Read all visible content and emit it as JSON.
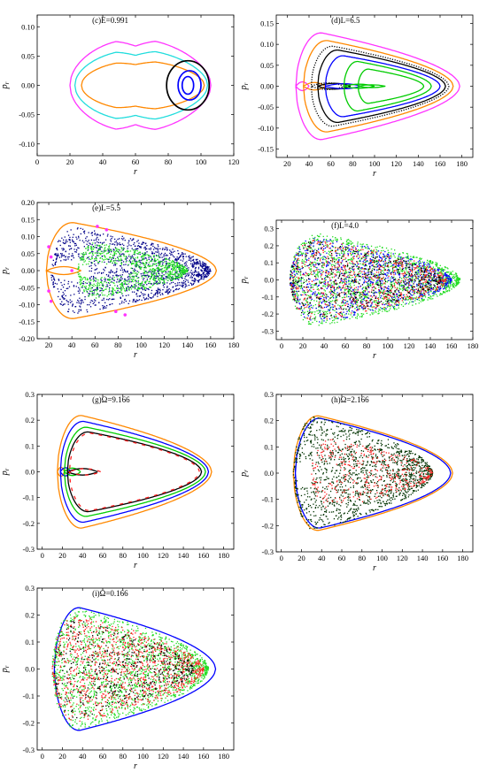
{
  "chart_data": [
    {
      "type": "line",
      "title": "(c)E=0.991",
      "xlabel": "r",
      "ylabel": "p_r",
      "xlim": [
        0,
        120
      ],
      "ylim": [
        -0.12,
        0.12
      ],
      "xticks": [
        "0",
        "20",
        "40",
        "60",
        "80",
        "100",
        "120"
      ],
      "yticks": [
        "-0.10",
        "-0.05",
        "0.00",
        "0.05",
        "0.10"
      ],
      "series": [
        {
          "kind": "lobe",
          "color": "#ff33ff",
          "rmin": 20,
          "rmax": 106,
          "amp": 0.085,
          "notch": 0.07,
          "neck": 60,
          "horn": true
        },
        {
          "kind": "lobe",
          "color": "#22dddd",
          "rmin": 23,
          "rmax": 104,
          "amp": 0.065,
          "notch": 0.045,
          "neck": 60
        },
        {
          "kind": "lobe",
          "color": "#ff8800",
          "rmin": 27,
          "rmax": 102,
          "amp": 0.045,
          "notch": 0.025,
          "neck": 60
        },
        {
          "kind": "island",
          "color": "#000000",
          "center": 92,
          "rx": 13,
          "ry": 0.042
        },
        {
          "kind": "island",
          "color": "#0000ff",
          "center": 93,
          "rx": 7,
          "ry": 0.025
        },
        {
          "kind": "island",
          "color": "#0000ff",
          "center": 92,
          "rx": 3.5,
          "ry": 0.015
        }
      ]
    },
    {
      "type": "line",
      "title": "(d)L=6.5",
      "xlabel": "r",
      "ylabel": "p_r",
      "xlim": [
        10,
        190
      ],
      "ylim": [
        -0.17,
        0.17
      ],
      "xticks": [
        "20",
        "40",
        "60",
        "80",
        "100",
        "120",
        "140",
        "160",
        "180"
      ],
      "yticks": [
        "-0.15",
        "-0.10",
        "-0.05",
        "0.00",
        "0.05",
        "0.10",
        "0.15"
      ],
      "series": [
        {
          "kind": "chevron",
          "color": "#ff33ff",
          "rmin": 28,
          "rmax": 178,
          "amp": 0.14,
          "notch": 40
        },
        {
          "kind": "chevron",
          "color": "#ff8800",
          "rmin": 35,
          "rmax": 172,
          "amp": 0.12,
          "notch": 55
        },
        {
          "kind": "chevron",
          "color": "#000000",
          "rmin": 42,
          "rmax": 168,
          "amp": 0.105,
          "notch": 72,
          "dotted": true
        },
        {
          "kind": "chevron",
          "color": "#000000",
          "rmin": 48,
          "rmax": 165,
          "amp": 0.095,
          "notch": 78
        },
        {
          "kind": "chevron",
          "color": "#0000ff",
          "rmin": 55,
          "rmax": 160,
          "amp": 0.08,
          "notch": 88
        },
        {
          "kind": "chevron",
          "color": "#00cc00",
          "rmin": 72,
          "rmax": 152,
          "amp": 0.065,
          "notch": 100
        },
        {
          "kind": "chevron",
          "color": "#00cc00",
          "rmin": 85,
          "rmax": 145,
          "amp": 0.045,
          "notch": 110
        }
      ]
    },
    {
      "type": "scatter",
      "title": "(e)L=5.5",
      "xlabel": "r",
      "ylabel": "p_r",
      "xlim": [
        10,
        180
      ],
      "ylim": [
        -0.2,
        0.2
      ],
      "xticks": [
        "20",
        "40",
        "60",
        "80",
        "100",
        "120",
        "140",
        "160",
        "180"
      ],
      "yticks": [
        "-0.20",
        "-0.15",
        "-0.10",
        "-0.05",
        "0.00",
        "0.05",
        "0.10",
        "0.15",
        "0.20"
      ],
      "series": [
        {
          "kind": "chevron",
          "color": "#ff8800",
          "rmin": 18,
          "rmax": 165,
          "amp": 0.155,
          "notch": 48
        },
        {
          "kind": "chaos",
          "color": "#000088",
          "rmin": 22,
          "rmax": 160,
          "amp": 0.14,
          "notch": 55,
          "n": 1500
        },
        {
          "kind": "chaos",
          "color": "#22dd22",
          "rmin": 45,
          "rmax": 140,
          "amp": 0.09,
          "notch": 90,
          "n": 1000
        },
        {
          "kind": "points",
          "color": "#ff33ff",
          "x": [
            20,
            20,
            22,
            22,
            40,
            62,
            70,
            78,
            86
          ],
          "y": [
            0.07,
            -0.06,
            0.04,
            -0.09,
            0.0,
            0.13,
            0.12,
            -0.12,
            -0.13
          ]
        }
      ]
    },
    {
      "type": "scatter",
      "title": "(f)L=4.0",
      "xlabel": "r",
      "ylabel": "p_r",
      "xlim": [
        -5,
        180
      ],
      "ylim": [
        -0.35,
        0.35
      ],
      "xticks": [
        "0",
        "20",
        "40",
        "60",
        "80",
        "100",
        "120",
        "140",
        "160",
        "180"
      ],
      "yticks": [
        "-0.3",
        "-0.2",
        "-0.1",
        "0.0",
        "0.1",
        "0.2",
        "0.3"
      ],
      "series": [
        {
          "kind": "chaos",
          "color": "#22dd22",
          "rmin": 8,
          "rmax": 168,
          "amp": 0.3,
          "notch": 10,
          "n": 1800
        },
        {
          "kind": "chaos",
          "color": "#0000ff",
          "rmin": 8,
          "rmax": 160,
          "amp": 0.28,
          "notch": 10,
          "n": 900
        },
        {
          "kind": "chaos",
          "color": "#ff2222",
          "rmin": 8,
          "rmax": 155,
          "amp": 0.27,
          "notch": 10,
          "n": 700
        },
        {
          "kind": "chaos",
          "color": "#000000",
          "rmin": 8,
          "rmax": 150,
          "amp": 0.25,
          "notch": 10,
          "n": 500
        }
      ]
    },
    {
      "type": "line",
      "title": "(g)Ω=9.166",
      "xlabel": "r",
      "ylabel": "p_r",
      "xlim": [
        -5,
        190
      ],
      "ylim": [
        -0.3,
        0.3
      ],
      "xticks": [
        "0",
        "20",
        "40",
        "60",
        "80",
        "100",
        "120",
        "140",
        "160",
        "180"
      ],
      "yticks": [
        "-0.3",
        "-0.2",
        "-0.1",
        "0.0",
        "0.1",
        "0.2",
        "0.3"
      ],
      "series": [
        {
          "kind": "chevron",
          "color": "#ff8800",
          "rmin": 15,
          "rmax": 168,
          "amp": 0.24,
          "notch": 22
        },
        {
          "kind": "chevron",
          "color": "#0000ff",
          "rmin": 18,
          "rmax": 165,
          "amp": 0.215,
          "notch": 28
        },
        {
          "kind": "chevron",
          "color": "#00cc00",
          "rmin": 22,
          "rmax": 162,
          "amp": 0.19,
          "notch": 38
        },
        {
          "kind": "chevron",
          "color": "#000000",
          "rmin": 25,
          "rmax": 158,
          "amp": 0.17,
          "notch": 55
        },
        {
          "kind": "chevron",
          "color": "#ff2222",
          "rmin": 27,
          "rmax": 156,
          "amp": 0.165,
          "notch": 58,
          "dashed": true
        }
      ]
    },
    {
      "type": "scatter",
      "title": "(h)Ω=2.166",
      "xlabel": "r",
      "ylabel": "p_r",
      "xlim": [
        -5,
        190
      ],
      "ylim": [
        -0.3,
        0.3
      ],
      "xticks": [
        "0",
        "20",
        "40",
        "60",
        "80",
        "100",
        "120",
        "140",
        "160",
        "180"
      ],
      "yticks": [
        "-0.3",
        "-0.2",
        "-0.1",
        "0.0",
        "0.1",
        "0.2",
        "0.3"
      ],
      "series": [
        {
          "kind": "chevron",
          "color": "#ff8800",
          "rmin": 12,
          "rmax": 170,
          "amp": 0.24,
          "notch": 12
        },
        {
          "kind": "chevron",
          "color": "#0000ff",
          "rmin": 14,
          "rmax": 168,
          "amp": 0.23,
          "notch": 14
        },
        {
          "kind": "chaos",
          "color": "#003300",
          "rmin": 12,
          "rmax": 150,
          "amp": 0.24,
          "notch": 30,
          "n": 1500
        },
        {
          "kind": "chaos",
          "color": "#ff2222",
          "rmin": 30,
          "rmax": 150,
          "amp": 0.15,
          "notch": 55,
          "n": 400
        }
      ]
    },
    {
      "type": "scatter",
      "title": "(i)Ω=0.166",
      "xlabel": "r",
      "ylabel": "p_r",
      "xlim": [
        -5,
        190
      ],
      "ylim": [
        -0.3,
        0.3
      ],
      "xticks": [
        "0",
        "20",
        "40",
        "60",
        "80",
        "100",
        "120",
        "140",
        "160",
        "180"
      ],
      "yticks": [
        "-0.3",
        "-0.2",
        "-0.1",
        "0.0",
        "0.1",
        "0.2",
        "0.3"
      ],
      "series": [
        {
          "kind": "chevron",
          "color": "#0000ff",
          "rmin": 12,
          "rmax": 172,
          "amp": 0.25,
          "notch": 12
        },
        {
          "kind": "chaos",
          "color": "#22dd22",
          "rmin": 10,
          "rmax": 165,
          "amp": 0.25,
          "notch": 12,
          "n": 1700
        },
        {
          "kind": "chaos",
          "color": "#ff2222",
          "rmin": 10,
          "rmax": 160,
          "amp": 0.22,
          "notch": 15,
          "n": 1100
        },
        {
          "kind": "chaos",
          "color": "#000000",
          "rmin": 12,
          "rmax": 150,
          "amp": 0.2,
          "notch": 20,
          "n": 500
        }
      ]
    }
  ]
}
